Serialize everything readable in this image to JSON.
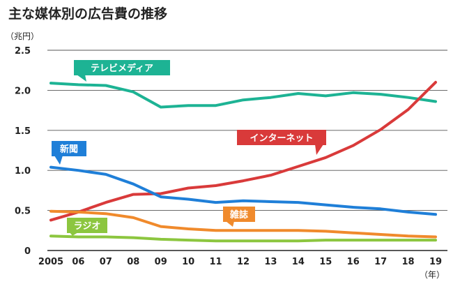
{
  "chart_data": {
    "type": "line",
    "title": "主な媒体別の広告費の推移",
    "ylabel": "（兆円）",
    "xlabel": "（年）",
    "ylim": [
      0,
      2.5
    ],
    "yticks": [
      "0",
      "0.5",
      "1.0",
      "1.5",
      "2.0",
      "2.5"
    ],
    "yticks_values": [
      0,
      0.5,
      1.0,
      1.5,
      2.0,
      2.5
    ],
    "categories": [
      "2005",
      "06",
      "07",
      "08",
      "09",
      "10",
      "11",
      "12",
      "13",
      "14",
      "15",
      "16",
      "17",
      "18",
      "19"
    ],
    "series": [
      {
        "name": "テレビメディア",
        "color": "#1db394",
        "values": [
          2.09,
          2.07,
          2.06,
          1.98,
          1.79,
          1.81,
          1.81,
          1.88,
          1.91,
          1.96,
          1.93,
          1.97,
          1.95,
          1.91,
          1.86
        ]
      },
      {
        "name": "インターネット",
        "color": "#d93a3a",
        "values": [
          0.38,
          0.48,
          0.6,
          0.7,
          0.71,
          0.78,
          0.81,
          0.87,
          0.94,
          1.05,
          1.16,
          1.31,
          1.51,
          1.76,
          2.1
        ]
      },
      {
        "name": "新聞",
        "color": "#1f7fd8",
        "values": [
          1.04,
          1.0,
          0.95,
          0.83,
          0.67,
          0.64,
          0.6,
          0.62,
          0.61,
          0.6,
          0.57,
          0.54,
          0.52,
          0.48,
          0.45
        ]
      },
      {
        "name": "雑誌",
        "color": "#f08a2c",
        "values": [
          0.49,
          0.48,
          0.46,
          0.41,
          0.3,
          0.27,
          0.25,
          0.25,
          0.25,
          0.25,
          0.24,
          0.22,
          0.2,
          0.18,
          0.17
        ]
      },
      {
        "name": "ラジオ",
        "color": "#8cc63f",
        "values": [
          0.18,
          0.17,
          0.17,
          0.16,
          0.14,
          0.13,
          0.12,
          0.12,
          0.12,
          0.12,
          0.13,
          0.13,
          0.13,
          0.13,
          0.13
        ]
      }
    ]
  }
}
